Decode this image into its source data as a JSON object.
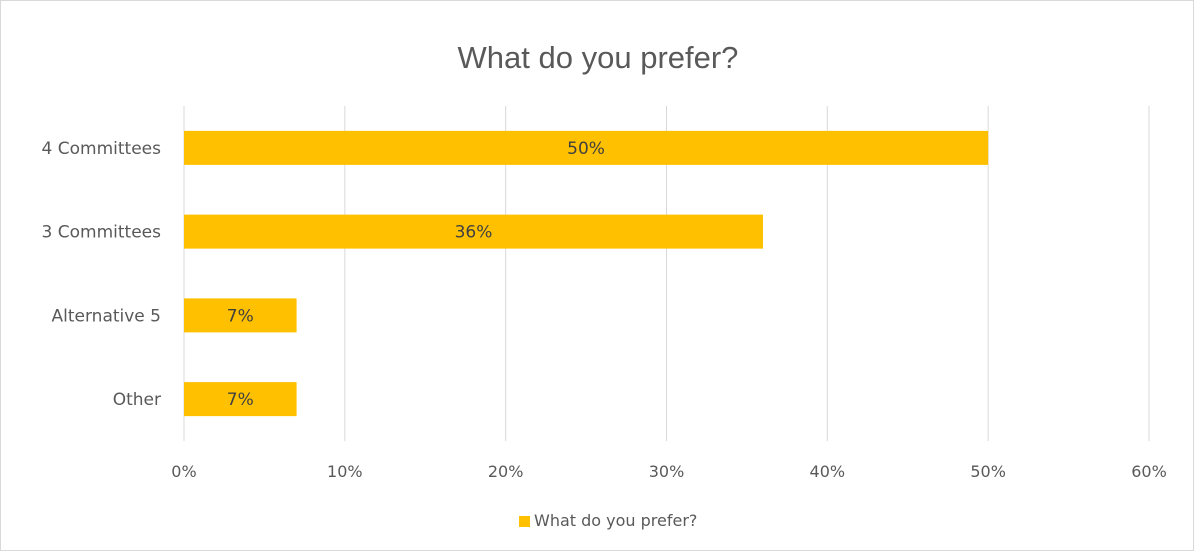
{
  "chart_data": {
    "type": "bar",
    "orientation": "horizontal",
    "title": "What do you prefer?",
    "categories": [
      "4 Committees",
      "3 Committees",
      "Alternative 5",
      "Other"
    ],
    "series": [
      {
        "name": "What do you prefer?",
        "values": [
          50,
          36,
          7,
          7
        ],
        "data_labels": [
          "50%",
          "36%",
          "7%",
          "7%"
        ]
      }
    ],
    "xlim": [
      0,
      60
    ],
    "x_ticks": [
      0,
      10,
      20,
      30,
      40,
      50,
      60
    ],
    "x_tick_labels": [
      "0%",
      "10%",
      "20%",
      "30%",
      "40%",
      "50%",
      "60%"
    ],
    "xlabel": "",
    "ylabel": "",
    "grid": true,
    "legend_position": "bottom",
    "colors": {
      "bar": "#FFC000",
      "grid": "#d9d9d9",
      "text": "#595959",
      "frame": "#d9d9d9"
    }
  }
}
